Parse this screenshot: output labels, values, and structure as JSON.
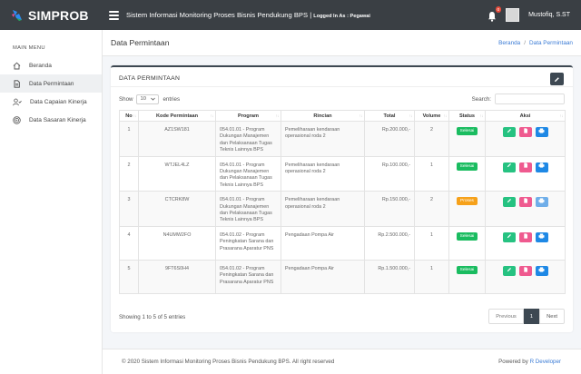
{
  "app": {
    "brand": "SIMPROB",
    "title": "Sistem Informasi Monitoring Proses Bisnis Pendukung BPS",
    "separator": "|",
    "logged_in": "Logged In As : Pegawai"
  },
  "user": {
    "name": "Mustofiq, S.ST",
    "notif_count": "0"
  },
  "sidebar": {
    "header": "MAIN MENU",
    "items": [
      {
        "label": "Beranda",
        "icon": "home-icon"
      },
      {
        "label": "Data Permintaan",
        "icon": "document-icon"
      },
      {
        "label": "Data Capaian Kinerja",
        "icon": "user-check-icon"
      },
      {
        "label": "Data Sasaran Kinerja",
        "icon": "target-icon"
      }
    ]
  },
  "page": {
    "title": "Data Permintaan",
    "breadcrumb": [
      "Beranda",
      "/",
      "Data Permintaan"
    ]
  },
  "card": {
    "title": "DATA PERMINTAAN",
    "show_label": "Show",
    "entries_value": "10",
    "entries_label": "entries",
    "search_label": "Search:",
    "search_placeholder": ""
  },
  "table": {
    "headers": [
      "No",
      "Kode Permintaan",
      "Program",
      "Rincian",
      "Total",
      "Volume",
      "Status",
      "Aksi"
    ],
    "rows": [
      {
        "no": "1",
        "kode": "AZ1SW181",
        "program": "054.01.01 - Program Dukungan Manajemen dan Pelaksanaan Tugas Teknis Lainnya BPS",
        "rincian": "Pemeliharaan kendaraan operasional roda 2",
        "total": "Rp.200.000,-",
        "volume": "2",
        "status": "Selesai"
      },
      {
        "no": "2",
        "kode": "WTJEL4LZ",
        "program": "054.01.01 - Program Dukungan Manajemen dan Pelaksanaan Tugas Teknis Lainnya BPS",
        "rincian": "Pemeliharaan kendaraan operasional roda 2",
        "total": "Rp.100.000,-",
        "volume": "1",
        "status": "Selesai"
      },
      {
        "no": "3",
        "kode": "CTCRK8W",
        "program": "054.01.01 - Program Dukungan Manajemen dan Pelaksanaan Tugas Teknis Lainnya BPS",
        "rincian": "Pemeliharaan kendaraan operasional roda 2",
        "total": "Rp.150.000,-",
        "volume": "2",
        "status": "Proses"
      },
      {
        "no": "4",
        "kode": "N4UMW2FO",
        "program": "054.01.02 - Program Peningkatan Sarana dan Prasarana Aparatur PNS",
        "rincian": "Pengadaan Pompa Air",
        "total": "Rp.2.500.000,-",
        "volume": "1",
        "status": "Selesai"
      },
      {
        "no": "5",
        "kode": "9FT6S0H4",
        "program": "054.01.02 - Program Peningkatan Sarana dan Prasarana Aparatur PNS",
        "rincian": "Pengadaan Pompa Air",
        "total": "Rp.1.500.000,-",
        "volume": "1",
        "status": "Selesai"
      }
    ]
  },
  "table_info": "Showing 1 to 5 of 5 entries",
  "pagination": {
    "previous": "Previous",
    "current": "1",
    "next": "Next"
  },
  "footer": {
    "copyright": "© 2020 Sistem Informasi Monitoring Proses Bisnis Pendukung BPS. All right reserved",
    "powered_by": "Powered by",
    "developer": "R Developer"
  },
  "colors": {
    "topbar": "#3a3f44",
    "card_accent": "#3d4852",
    "status_done": "#1abc60",
    "status_process": "#f6a11a"
  }
}
